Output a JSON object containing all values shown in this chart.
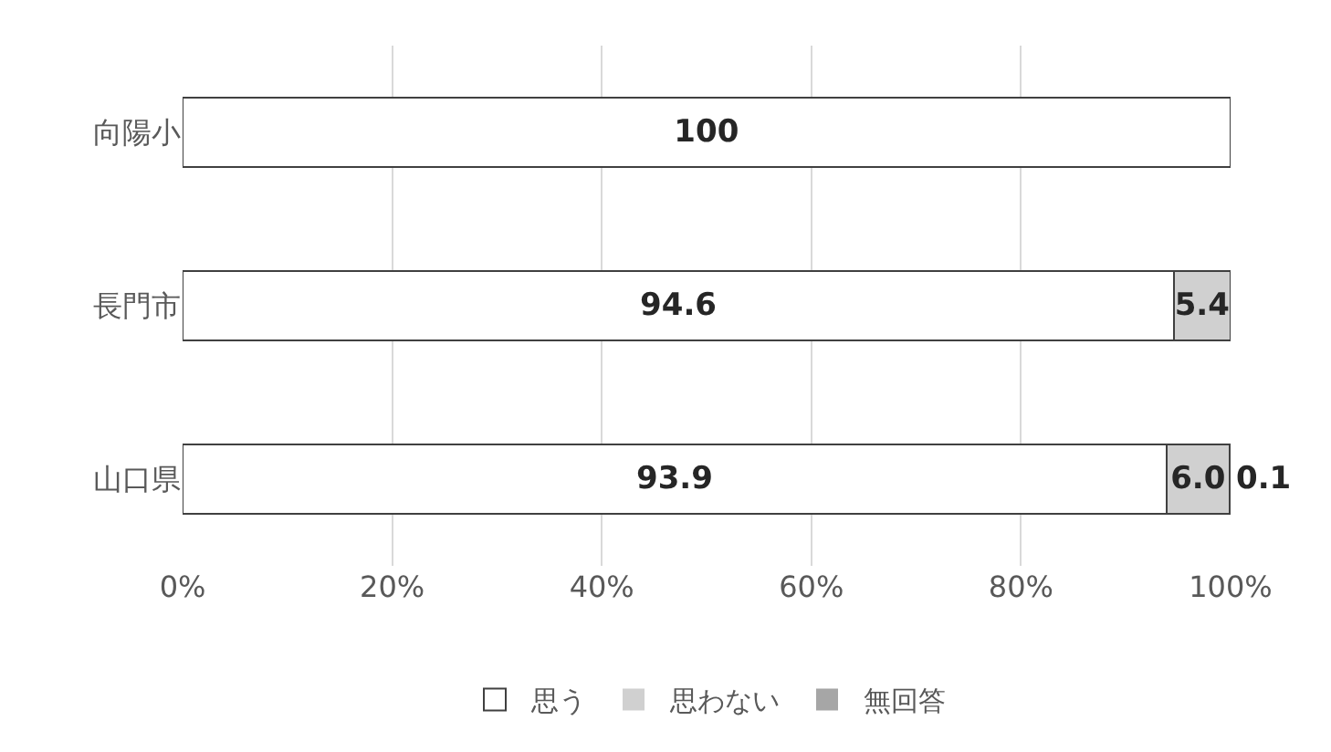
{
  "chart_data": {
    "type": "bar",
    "orientation": "horizontal",
    "stacked": true,
    "categories": [
      "向陽小",
      "長門市",
      "山口県"
    ],
    "series": [
      {
        "name": "思う",
        "color": "#ffffff",
        "values": [
          100,
          94.6,
          93.9
        ],
        "value_labels": [
          "100",
          "94.6",
          "93.9"
        ]
      },
      {
        "name": "思わない",
        "color": "#d0d0d0",
        "values": [
          0,
          5.4,
          6.0
        ],
        "value_labels": [
          null,
          "5.4",
          "6.0"
        ]
      },
      {
        "name": "無回答",
        "color": "#a6a6a6",
        "values": [
          0,
          0,
          0.1
        ],
        "value_labels": [
          null,
          null,
          "0.1"
        ]
      }
    ],
    "xlim": [
      0,
      100
    ],
    "xticks": [
      {
        "value": 0,
        "label": "0%"
      },
      {
        "value": 20,
        "label": "20%"
      },
      {
        "value": 40,
        "label": "40%"
      },
      {
        "value": 60,
        "label": "60%"
      },
      {
        "value": 80,
        "label": "80%"
      },
      {
        "value": 100,
        "label": "100%"
      }
    ],
    "grid": "x",
    "legend": "bottom"
  }
}
